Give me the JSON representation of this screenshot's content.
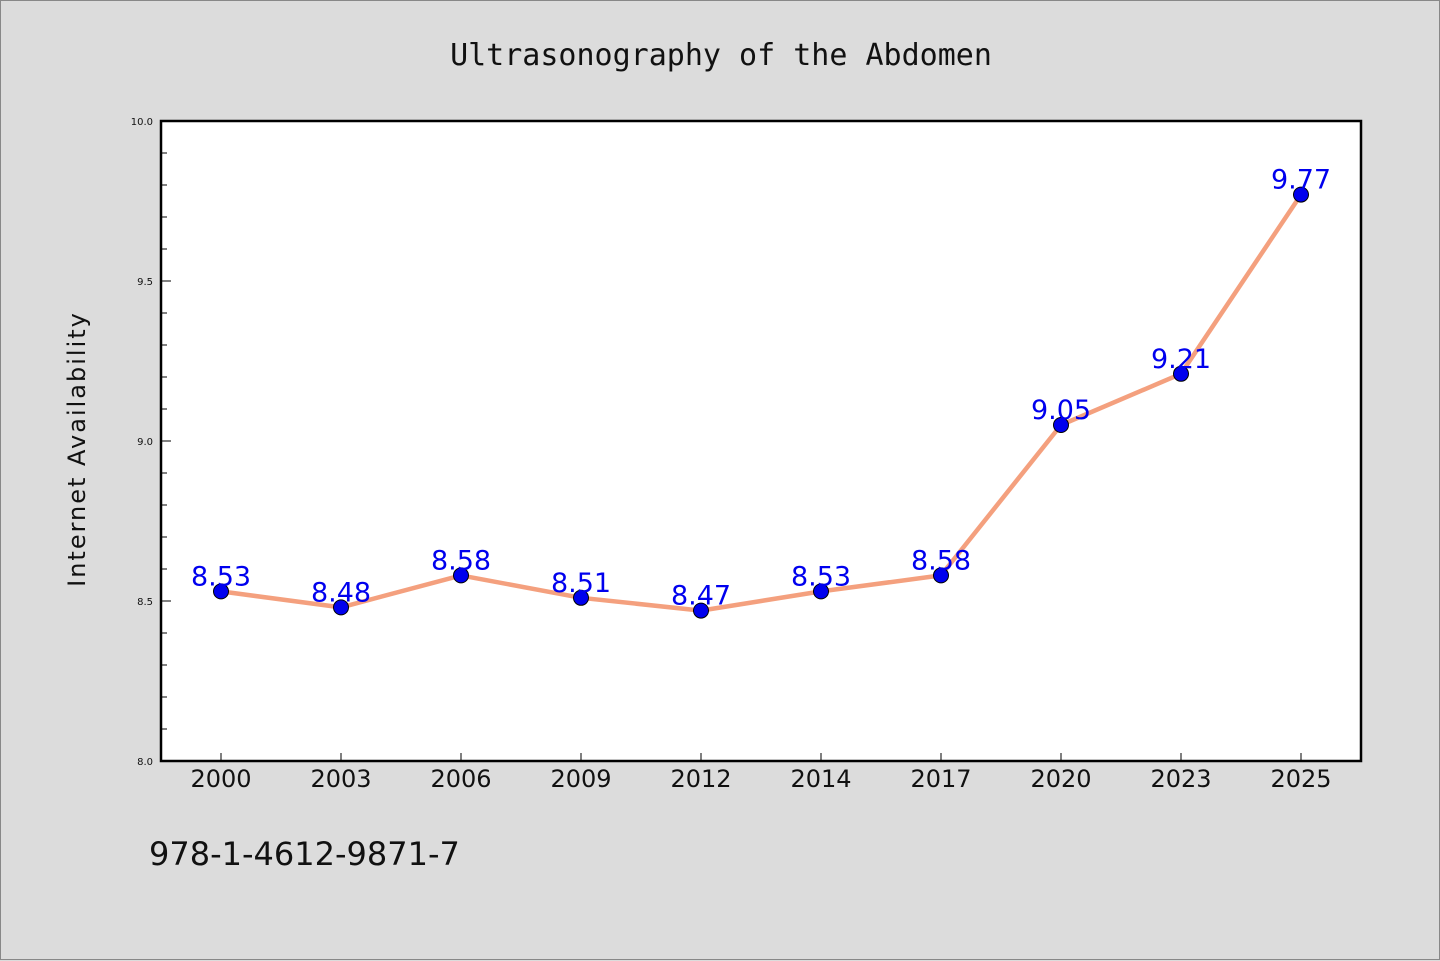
{
  "footer_text": "978-1-4612-9871-7",
  "chart_data": {
    "type": "line",
    "title": "Ultrasonography of the Abdomen",
    "xlabel": "",
    "ylabel": "Internet Availability",
    "categories": [
      "2000",
      "2003",
      "2006",
      "2009",
      "2012",
      "2014",
      "2017",
      "2020",
      "2023",
      "2025"
    ],
    "series": [
      {
        "values": [
          8.53,
          8.48,
          8.58,
          8.51,
          8.47,
          8.53,
          8.58,
          9.05,
          9.21,
          9.77
        ]
      }
    ],
    "data_labels": [
      "8.53",
      "8.48",
      "8.58",
      "8.51",
      "8.47",
      "8.53",
      "8.58",
      "9.05",
      "9.21",
      "9.77"
    ],
    "ylim": [
      8.0,
      10.0
    ],
    "yticks": [
      "8.0",
      "8.5",
      "9.0",
      "9.5",
      "10.0"
    ],
    "grid": false,
    "legend": "none",
    "colors": {
      "line": "#f4a07e",
      "marker": "#0000ee",
      "label": "#0000ee",
      "background": "#dcdcdc",
      "plot_background": "#ffffff"
    }
  }
}
